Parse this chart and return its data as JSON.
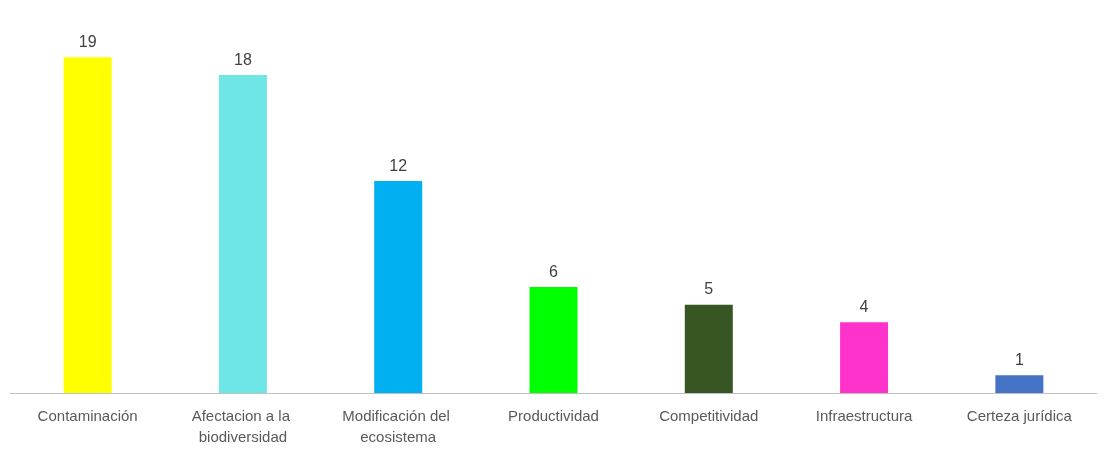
{
  "chart_data": {
    "type": "bar",
    "categories": [
      "Contaminación",
      "Afectacion a la biodiversidad",
      "Modificación del ecosistema",
      "Productividad",
      "Competitividad",
      "Infraestructura",
      "Certeza jurídica"
    ],
    "values": [
      19,
      18,
      12,
      6,
      5,
      4,
      1
    ],
    "colors": [
      "#ffff00",
      "#6ee6e6",
      "#00b0f0",
      "#00ff00",
      "#375623",
      "#ff33cc",
      "#4472c4"
    ],
    "data_labels": true,
    "grid": false
  }
}
